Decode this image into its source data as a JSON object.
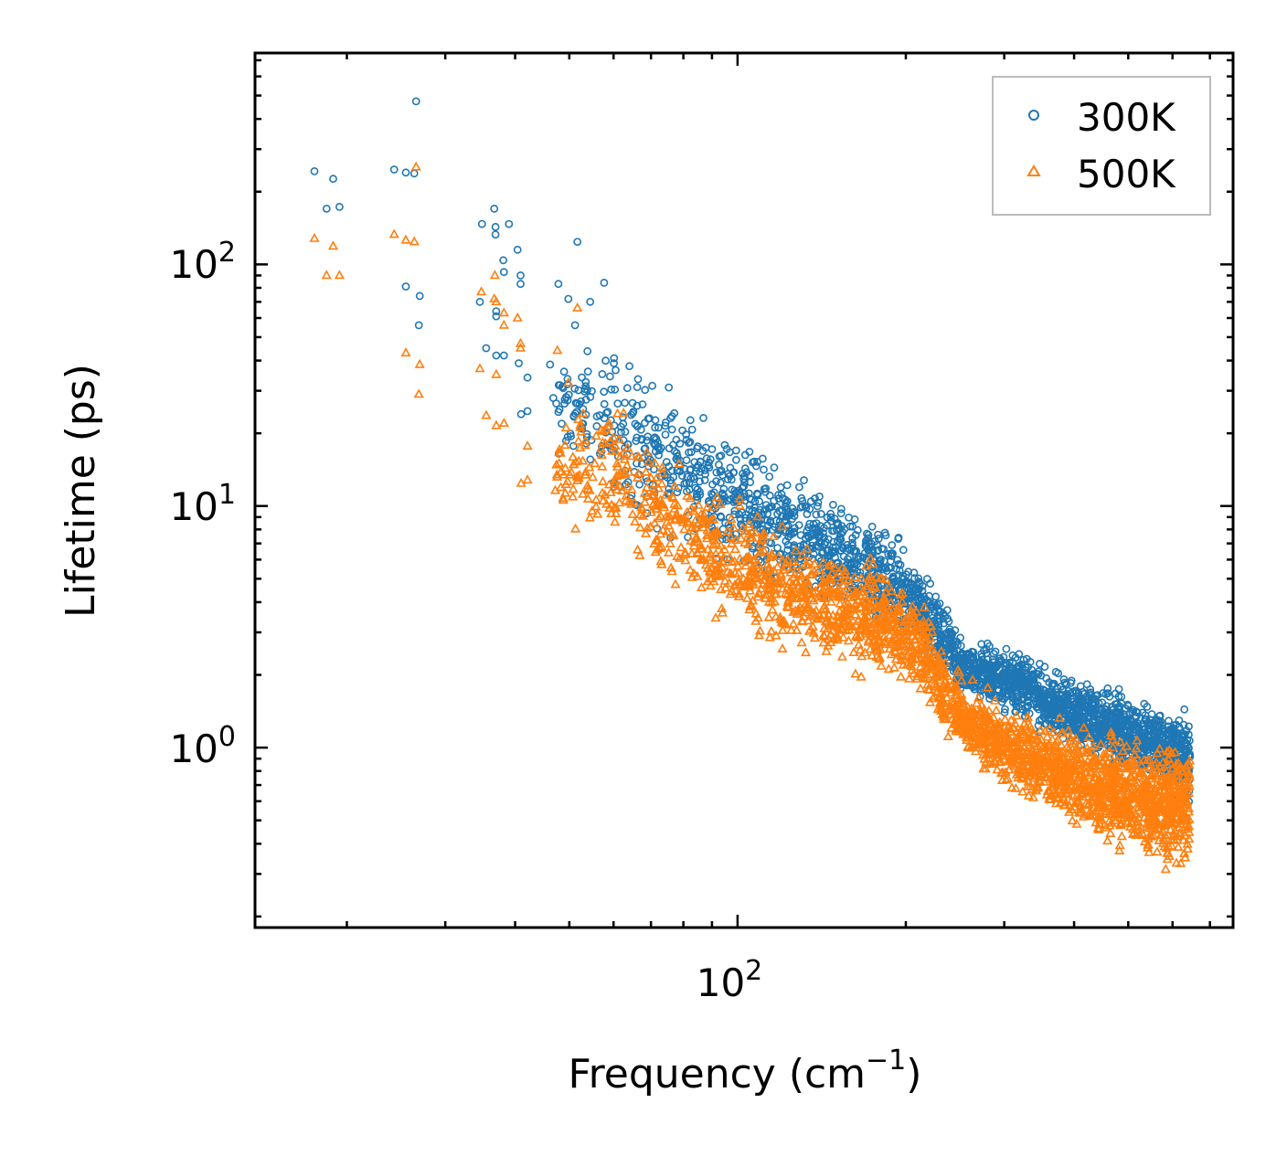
{
  "chart_data": {
    "type": "scatter",
    "title": "",
    "xlabel": "Frequency (cm",
    "xlabel_sup": "−1",
    "xlabel_tail": ")",
    "ylabel": "Lifetime (ps)",
    "xscale": "log",
    "yscale": "log",
    "xlim": [
      13.7,
      770
    ],
    "ylim": [
      0.18,
      750
    ],
    "grid": false,
    "legend_position": "top-right",
    "xticks": [
      {
        "value": 100,
        "base": "10",
        "exp": "2"
      }
    ],
    "yticks": [
      {
        "value": 1,
        "base": "10",
        "exp": "0"
      },
      {
        "value": 10,
        "base": "10",
        "exp": "1"
      },
      {
        "value": 100,
        "base": "10",
        "exp": "2"
      }
    ],
    "series": [
      {
        "name": "300K",
        "color": "#1f77b4",
        "marker": "circle",
        "points": [
          [
            17.5,
            243
          ],
          [
            18.9,
            226
          ],
          [
            18.4,
            170
          ],
          [
            19.4,
            173
          ],
          [
            24.3,
            247
          ],
          [
            25.5,
            240
          ],
          [
            26.4,
            238
          ],
          [
            26.6,
            473
          ],
          [
            25.5,
            81
          ],
          [
            27.0,
            74
          ],
          [
            26.9,
            56
          ],
          [
            34.9,
            147
          ],
          [
            36.7,
            170
          ],
          [
            39.0,
            147
          ],
          [
            36.9,
            143
          ],
          [
            36.9,
            133
          ],
          [
            38.1,
            104
          ],
          [
            40.4,
            115
          ],
          [
            38.2,
            93
          ],
          [
            40.9,
            90
          ],
          [
            40.9,
            83
          ],
          [
            34.6,
            70
          ],
          [
            37.0,
            64
          ],
          [
            37.0,
            61
          ],
          [
            35.5,
            45
          ],
          [
            37.0,
            42
          ],
          [
            38.2,
            42
          ],
          [
            40.6,
            39
          ],
          [
            42.1,
            34
          ],
          [
            41.0,
            24
          ],
          [
            42.1,
            24.7
          ],
          [
            51.7,
            124
          ],
          [
            47.8,
            83
          ],
          [
            49.8,
            72
          ],
          [
            54.5,
            70
          ],
          [
            57.7,
            84
          ],
          [
            51.2,
            56
          ],
          [
            46.2,
            38.5
          ],
          [
            46.8,
            28
          ]
        ],
        "dense_bands": [
          {
            "x": 47,
            "low": 15,
            "high": 40
          },
          {
            "x": 57,
            "low": 10,
            "high": 60
          },
          {
            "x": 68.6,
            "low": 7,
            "high": 45
          },
          {
            "x": 82.8,
            "low": 6,
            "high": 30
          },
          {
            "x": 100,
            "low": 5,
            "high": 22
          },
          {
            "x": 120,
            "low": 4,
            "high": 16
          },
          {
            "x": 146,
            "low": 3.5,
            "high": 12
          },
          {
            "x": 176,
            "low": 2.8,
            "high": 10
          },
          {
            "x": 212,
            "low": 2.3,
            "high": 6.5
          },
          {
            "x": 256,
            "low": 1.5,
            "high": 3
          },
          {
            "x": 309,
            "low": 1.3,
            "high": 2.8
          },
          {
            "x": 373,
            "low": 1.0,
            "high": 2.2
          },
          {
            "x": 451,
            "low": 0.8,
            "high": 2.0
          },
          {
            "x": 544,
            "low": 0.7,
            "high": 1.6
          },
          {
            "x": 645,
            "low": 0.5,
            "high": 1.6
          }
        ]
      },
      {
        "name": "500K",
        "color": "#ff7f0e",
        "marker": "triangle",
        "points": [
          [
            17.5,
            128
          ],
          [
            18.4,
            90
          ],
          [
            19.4,
            90
          ],
          [
            18.9,
            119
          ],
          [
            24.3,
            133
          ],
          [
            25.5,
            126
          ],
          [
            26.4,
            124
          ],
          [
            26.6,
            253
          ],
          [
            25.5,
            43
          ],
          [
            27.0,
            38.5
          ],
          [
            26.9,
            29
          ],
          [
            34.8,
            77
          ],
          [
            36.7,
            72
          ],
          [
            37.0,
            70
          ],
          [
            36.8,
            90
          ],
          [
            38.2,
            56
          ],
          [
            40.4,
            60
          ],
          [
            38.2,
            63
          ],
          [
            40.9,
            47
          ],
          [
            40.9,
            45
          ],
          [
            34.6,
            37
          ],
          [
            37.0,
            35
          ],
          [
            35.5,
            23.7
          ],
          [
            37.0,
            21.5
          ],
          [
            38.2,
            22
          ],
          [
            42.1,
            17.7
          ],
          [
            41.0,
            12.4
          ],
          [
            42.1,
            12.8
          ],
          [
            47.6,
            44
          ],
          [
            51.7,
            66
          ],
          [
            49.8,
            32.4
          ]
        ],
        "dense_bands": [
          {
            "x": 47,
            "low": 7,
            "high": 30
          },
          {
            "x": 57,
            "low": 7,
            "high": 30
          },
          {
            "x": 68.6,
            "low": 4.5,
            "high": 25
          },
          {
            "x": 82.8,
            "low": 3.5,
            "high": 14
          },
          {
            "x": 100,
            "low": 2.8,
            "high": 12
          },
          {
            "x": 120,
            "low": 2.3,
            "high": 9
          },
          {
            "x": 146,
            "low": 2.1,
            "high": 7
          },
          {
            "x": 176,
            "low": 1.8,
            "high": 6.5
          },
          {
            "x": 212,
            "low": 1.5,
            "high": 4.5
          },
          {
            "x": 256,
            "low": 0.8,
            "high": 2
          },
          {
            "x": 309,
            "low": 0.6,
            "high": 1.6
          },
          {
            "x": 373,
            "low": 0.5,
            "high": 1.4
          },
          {
            "x": 451,
            "low": 0.35,
            "high": 1.3
          },
          {
            "x": 544,
            "low": 0.3,
            "high": 1.1
          },
          {
            "x": 645,
            "low": 0.28,
            "high": 1.2
          }
        ]
      }
    ]
  }
}
